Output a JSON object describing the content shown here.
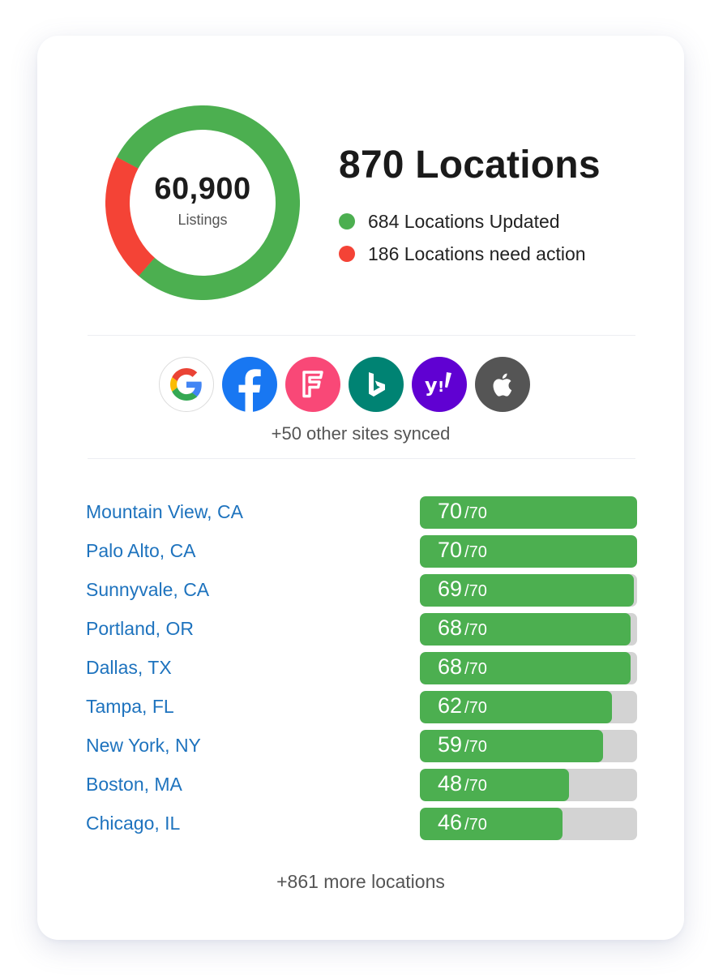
{
  "donut": {
    "value": "60,900",
    "label": "Listings",
    "updated_fraction": 0.786,
    "colors": {
      "updated": "#4caf50",
      "action": "#f44336"
    }
  },
  "summary": {
    "title": "870 Locations",
    "updated_text": "684 Locations Updated",
    "action_text": "186 Locations need action"
  },
  "sites": {
    "icons": [
      "google-icon",
      "facebook-icon",
      "foursquare-icon",
      "bing-icon",
      "yahoo-icon",
      "apple-icon"
    ],
    "synced_text": "+50 other sites synced"
  },
  "locations": [
    {
      "name": "Mountain View, CA",
      "score": "70",
      "max": "70"
    },
    {
      "name": "Palo Alto, CA",
      "score": "70",
      "max": "70"
    },
    {
      "name": "Sunnyvale, CA",
      "score": "69",
      "max": "70"
    },
    {
      "name": "Portland, OR",
      "score": "68",
      "max": "70"
    },
    {
      "name": "Dallas, TX",
      "score": "68",
      "max": "70"
    },
    {
      "name": "Tampa, FL",
      "score": "62",
      "max": "70"
    },
    {
      "name": "New York, NY",
      "score": "59",
      "max": "70"
    },
    {
      "name": "Boston, MA",
      "score": "48",
      "max": "70"
    },
    {
      "name": "Chicago, IL",
      "score": "46",
      "max": "70"
    }
  ],
  "more_text": "+861 more locations"
}
